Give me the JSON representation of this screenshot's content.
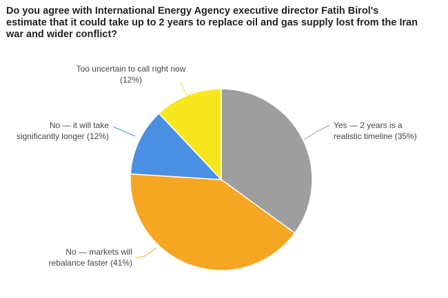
{
  "chart_data": {
    "type": "pie",
    "title": "Do you agree with International Energy Agency executive director Fatih Birol's estimate that it could take up to 2 years to replace oil and gas supply lost from the Iran war and wider conflict?",
    "categories": [
      "Yes — 2 years is a realistic timeline (35%)",
      "No — markets will rebalance faster (41%)",
      "No — it will take significantly longer (12%)",
      "Too uncertain to call right now (12%)"
    ],
    "values": [
      35,
      41,
      12,
      12
    ],
    "colors": [
      "#9e9e9e",
      "#f5a623",
      "#4a90e2",
      "#f8e71c"
    ]
  }
}
